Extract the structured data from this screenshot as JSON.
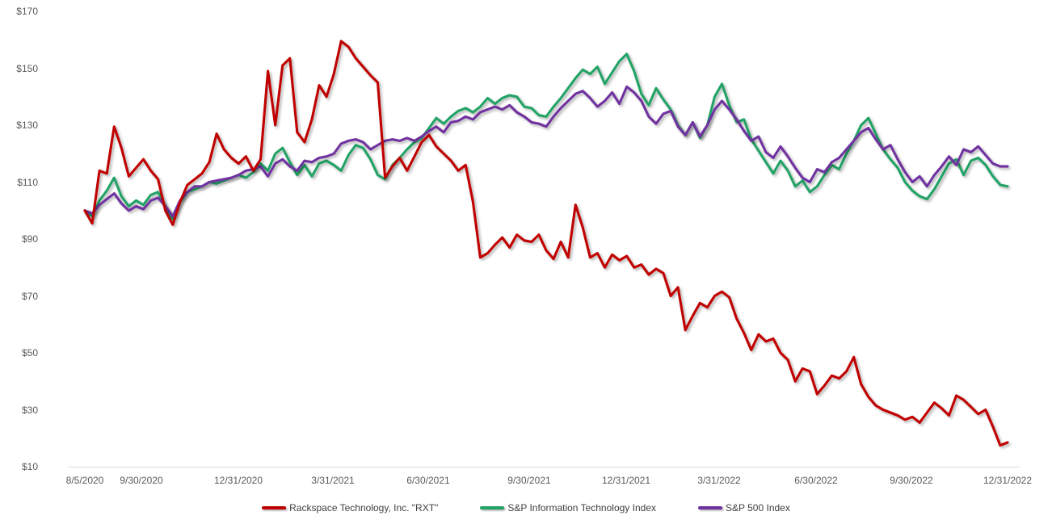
{
  "chart_data": {
    "type": "line",
    "title": "",
    "xlabel": "",
    "ylabel": "",
    "ylim": [
      10,
      170
    ],
    "grid": false,
    "legend_position": "bottom",
    "y_ticks": [
      {
        "label": "$170",
        "value": 170
      },
      {
        "label": "$150",
        "value": 150
      },
      {
        "label": "$130",
        "value": 130
      },
      {
        "label": "$110",
        "value": 110
      },
      {
        "label": "$90",
        "value": 90
      },
      {
        "label": "$70",
        "value": 70
      },
      {
        "label": "$50",
        "value": 50
      },
      {
        "label": "$30",
        "value": 30
      },
      {
        "label": "$10",
        "value": 10
      }
    ],
    "x_tick_labels": [
      "8/5/2020",
      "9/30/2020",
      "12/31/2020",
      "3/31/2021",
      "6/30/2021",
      "9/30/2021",
      "12/31/2021",
      "3/31/2022",
      "6/30/2022",
      "9/30/2022",
      "12/31/2022"
    ],
    "series": [
      {
        "name": "S&P Information Technology Index",
        "color": "#21A366",
        "values": [
          100,
          98,
          103.5,
          107,
          111.5,
          105,
          101.5,
          103.5,
          102,
          105.5,
          106.5,
          101.5,
          97,
          103,
          106.5,
          107.5,
          108.5,
          110,
          109.5,
          110.5,
          111.5,
          112.5,
          111.5,
          113.5,
          116.5,
          114,
          120,
          122,
          117,
          112.5,
          116,
          112,
          116.5,
          117.5,
          116,
          114,
          119.5,
          123,
          122,
          118,
          112.5,
          111,
          116,
          118.5,
          121.5,
          124,
          125.5,
          129,
          132.5,
          130.5,
          133,
          135,
          136,
          134.5,
          136.5,
          139.5,
          137.5,
          139.5,
          140.5,
          140,
          136.5,
          136,
          133.5,
          133,
          136.5,
          139.5,
          143,
          146.5,
          149.5,
          148,
          150.5,
          144.5,
          148.5,
          152.5,
          155,
          149,
          141,
          137,
          143,
          139,
          135.5,
          130,
          126.5,
          131,
          125.5,
          130,
          140,
          144.5,
          137,
          131,
          132,
          125,
          121,
          117,
          113,
          117.5,
          114,
          108.5,
          110.5,
          106.5,
          108.5,
          112.5,
          116,
          114.5,
          120,
          124.5,
          130,
          132.5,
          127,
          121.5,
          118,
          115,
          110,
          107,
          105,
          104,
          107.5,
          112,
          116.5,
          118,
          112.5,
          117.5,
          118.5,
          116,
          112,
          109,
          108.5
        ]
      },
      {
        "name": "S&P 500 Index",
        "color": "#7030A0",
        "values": [
          100,
          99,
          102,
          104,
          106,
          102.5,
          100,
          101.5,
          100.5,
          103.5,
          104.5,
          101.5,
          98,
          103.5,
          106.5,
          108.5,
          108.5,
          110,
          110.5,
          111,
          111.5,
          112.5,
          114,
          114.5,
          115.5,
          112,
          116.5,
          118,
          115.5,
          114,
          117.5,
          117,
          118.5,
          119,
          120,
          123.5,
          124.5,
          125,
          124,
          121.5,
          123,
          124.5,
          125,
          124.5,
          125.5,
          124.5,
          126,
          128,
          129.5,
          127.5,
          131,
          131.5,
          133,
          132,
          134.5,
          135.5,
          136.5,
          135.5,
          137,
          134.5,
          133,
          131,
          130.5,
          129.5,
          133,
          136,
          138.5,
          141,
          142,
          139.5,
          136.5,
          138.5,
          141.5,
          137.5,
          143.5,
          141.5,
          138.5,
          133,
          130.5,
          134,
          135,
          129.5,
          126.5,
          131,
          126,
          130,
          135.5,
          138.5,
          135.5,
          132,
          128,
          124.5,
          126,
          120.5,
          118.5,
          122.5,
          119,
          115,
          111.5,
          110,
          114.5,
          113.5,
          117,
          118.5,
          121.5,
          124.5,
          127.5,
          129,
          125,
          121.5,
          123,
          118,
          113.5,
          110,
          112,
          108.5,
          112.5,
          115.5,
          119,
          116,
          121.5,
          120.5,
          122.5,
          119.5,
          116.5,
          115.5,
          115.5
        ]
      },
      {
        "name": "Rackspace Technology, Inc. \"RXT\"",
        "color": "#C00000",
        "values": [
          100,
          95.5,
          114,
          113,
          129.5,
          122,
          112,
          115,
          118,
          114,
          111,
          100,
          95,
          103,
          109,
          111,
          113,
          117,
          127,
          121.5,
          118.5,
          116.5,
          119,
          114,
          118,
          149,
          130,
          151,
          153.5,
          127.5,
          124,
          132,
          144,
          140,
          148,
          159.5,
          157.5,
          153.5,
          150.5,
          147.5,
          145,
          111.5,
          115.5,
          118.5,
          114,
          119,
          124,
          126.5,
          122.5,
          120,
          117.5,
          114,
          116,
          103,
          83.5,
          85,
          88,
          90.5,
          87,
          91.5,
          89.5,
          89,
          91.5,
          86,
          83,
          89,
          83.5,
          102,
          94,
          83.5,
          85,
          80,
          84.5,
          82.5,
          84,
          80,
          81,
          77.5,
          79.5,
          78,
          70,
          73,
          58,
          63,
          67.5,
          66,
          70,
          71.5,
          69.5,
          62,
          57,
          51,
          56.5,
          54,
          55,
          50,
          47.5,
          40,
          44.5,
          43.5,
          35.5,
          38.5,
          42,
          41,
          43.5,
          48.5,
          39,
          34.5,
          31.5,
          30,
          29,
          28,
          26.5,
          27.5,
          25.5,
          29,
          32.5,
          30.5,
          28,
          35,
          33.5,
          31,
          28.5,
          30,
          24,
          17.5,
          18.5
        ]
      }
    ]
  },
  "legend": {
    "items": [
      {
        "label": "Rackspace Technology, Inc. \"RXT\"",
        "color": "#C00000"
      },
      {
        "label": "S&P Information Technology Index",
        "color": "#21A366"
      },
      {
        "label": "S&P 500 Index",
        "color": "#7030A0"
      }
    ]
  }
}
